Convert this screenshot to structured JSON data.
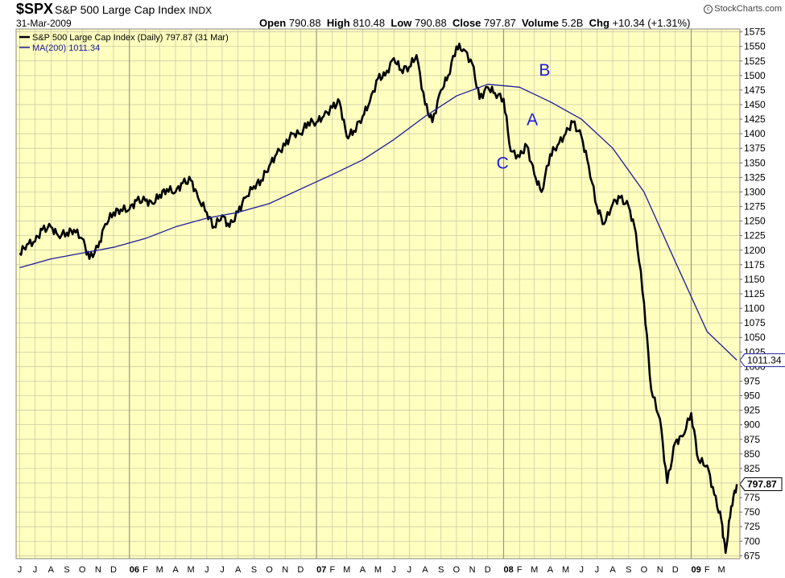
{
  "header": {
    "symbol": "$SPX",
    "name": "S&P 500 Large Cap Index",
    "exchange": "INDX",
    "date": "31-Mar-2009",
    "open_label": "Open",
    "open": "790.88",
    "high_label": "High",
    "high": "810.48",
    "low_label": "Low",
    "low": "790.88",
    "close_label": "Close",
    "close": "797.87",
    "volume_label": "Volume",
    "volume": "5.2B",
    "chg_label": "Chg",
    "chg": "+10.34 (+1.31%)",
    "brand": "StockCharts.com",
    "brand_icon": "copyright-icon"
  },
  "colors": {
    "plot_background": "#ffffc0",
    "grid": "#c4c4a0",
    "price_line": "#000000",
    "ma_line": "#1c1c99",
    "annotation": "#1a1adc"
  },
  "chart_data": {
    "type": "line",
    "title": "S&P 500 Large Cap Index",
    "xlabel": "",
    "ylabel": "",
    "ylim": [
      670,
      1580
    ],
    "y_ticks": [
      675,
      700,
      725,
      750,
      775,
      800,
      825,
      850,
      875,
      900,
      925,
      950,
      975,
      1000,
      1025,
      1050,
      1075,
      1100,
      1125,
      1150,
      1175,
      1200,
      1225,
      1250,
      1275,
      1300,
      1325,
      1350,
      1375,
      1400,
      1425,
      1450,
      1475,
      1500,
      1525,
      1550,
      1575
    ],
    "y_axis_side": "right",
    "grid": true,
    "legend_position": "top-left",
    "x_ticks": [
      "J",
      "J",
      "A",
      "S",
      "O",
      "N",
      "D",
      "06",
      "F",
      "M",
      "A",
      "M",
      "J",
      "J",
      "A",
      "S",
      "O",
      "N",
      "D",
      "07",
      "F",
      "M",
      "A",
      "M",
      "J",
      "J",
      "A",
      "S",
      "O",
      "N",
      "D",
      "08",
      "F",
      "M",
      "A",
      "M",
      "J",
      "J",
      "A",
      "S",
      "O",
      "N",
      "D",
      "09",
      "F",
      "M"
    ],
    "x_tick_is_year": [
      false,
      false,
      false,
      false,
      false,
      false,
      false,
      true,
      false,
      false,
      false,
      false,
      false,
      false,
      false,
      false,
      false,
      false,
      false,
      true,
      false,
      false,
      false,
      false,
      false,
      false,
      false,
      false,
      false,
      false,
      false,
      true,
      false,
      false,
      false,
      false,
      false,
      false,
      false,
      false,
      false,
      false,
      false,
      true,
      false,
      false
    ],
    "series": [
      {
        "name": "S&P 500 Large Cap Index (Daily) 797.87 (31 Mar)",
        "color": "#000000",
        "last_value_label": "797.87",
        "x": [
          "2005-06-01",
          "2005-06-15",
          "2005-07-01",
          "2005-07-15",
          "2005-08-01",
          "2005-08-15",
          "2005-09-01",
          "2005-09-15",
          "2005-10-01",
          "2005-10-15",
          "2005-11-01",
          "2005-11-15",
          "2005-12-01",
          "2005-12-15",
          "2006-01-01",
          "2006-01-15",
          "2006-02-01",
          "2006-02-15",
          "2006-03-01",
          "2006-03-15",
          "2006-04-01",
          "2006-04-15",
          "2006-05-01",
          "2006-05-15",
          "2006-06-01",
          "2006-06-15",
          "2006-07-01",
          "2006-07-15",
          "2006-08-01",
          "2006-08-15",
          "2006-09-01",
          "2006-09-15",
          "2006-10-01",
          "2006-10-15",
          "2006-11-01",
          "2006-11-15",
          "2006-12-01",
          "2006-12-15",
          "2007-01-01",
          "2007-01-15",
          "2007-02-01",
          "2007-02-15",
          "2007-03-01",
          "2007-03-15",
          "2007-04-01",
          "2007-04-15",
          "2007-05-01",
          "2007-05-15",
          "2007-06-01",
          "2007-06-15",
          "2007-07-01",
          "2007-07-15",
          "2007-08-01",
          "2007-08-15",
          "2007-09-01",
          "2007-09-15",
          "2007-10-01",
          "2007-10-15",
          "2007-11-01",
          "2007-11-15",
          "2007-12-01",
          "2007-12-15",
          "2008-01-01",
          "2008-01-15",
          "2008-02-01",
          "2008-02-15",
          "2008-03-01",
          "2008-03-15",
          "2008-04-01",
          "2008-04-15",
          "2008-05-01",
          "2008-05-15",
          "2008-06-01",
          "2008-06-15",
          "2008-07-01",
          "2008-07-15",
          "2008-08-01",
          "2008-08-15",
          "2008-09-01",
          "2008-09-15",
          "2008-10-01",
          "2008-10-15",
          "2008-11-01",
          "2008-11-15",
          "2008-12-01",
          "2008-12-15",
          "2009-01-01",
          "2009-01-15",
          "2009-02-01",
          "2009-02-15",
          "2009-03-01",
          "2009-03-09",
          "2009-03-20",
          "2009-03-31"
        ],
        "y": [
          1195,
          1210,
          1215,
          1235,
          1240,
          1225,
          1230,
          1235,
          1220,
          1185,
          1205,
          1245,
          1265,
          1270,
          1270,
          1285,
          1285,
          1280,
          1295,
          1305,
          1300,
          1315,
          1320,
          1290,
          1265,
          1240,
          1260,
          1240,
          1265,
          1290,
          1310,
          1320,
          1345,
          1365,
          1380,
          1400,
          1400,
          1420,
          1420,
          1430,
          1445,
          1455,
          1395,
          1405,
          1430,
          1455,
          1495,
          1500,
          1530,
          1510,
          1515,
          1535,
          1450,
          1420,
          1475,
          1500,
          1550,
          1545,
          1520,
          1460,
          1480,
          1470,
          1460,
          1370,
          1360,
          1380,
          1330,
          1300,
          1365,
          1380,
          1400,
          1420,
          1395,
          1345,
          1275,
          1245,
          1280,
          1290,
          1275,
          1230,
          1110,
          960,
          910,
          800,
          870,
          880,
          920,
          840,
          830,
          780,
          735,
          680,
          760,
          798
        ]
      },
      {
        "name": "MA(200) 1011.34",
        "color": "#1c1c99",
        "last_value_label": "1011.34",
        "x": [
          "2005-06-01",
          "2005-08-01",
          "2005-10-01",
          "2005-12-01",
          "2006-02-01",
          "2006-04-01",
          "2006-06-01",
          "2006-08-01",
          "2006-10-01",
          "2006-12-01",
          "2007-02-01",
          "2007-04-01",
          "2007-06-01",
          "2007-08-01",
          "2007-10-01",
          "2007-12-01",
          "2008-02-01",
          "2008-04-01",
          "2008-06-01",
          "2008-08-01",
          "2008-10-01",
          "2008-12-01",
          "2009-02-01",
          "2009-03-31"
        ],
        "y": [
          1170,
          1185,
          1195,
          1205,
          1220,
          1240,
          1255,
          1265,
          1280,
          1305,
          1330,
          1355,
          1390,
          1430,
          1465,
          1485,
          1480,
          1455,
          1425,
          1375,
          1300,
          1180,
          1060,
          1011
        ]
      }
    ],
    "annotations": [
      {
        "text": "A",
        "x": "2008-02-15",
        "y": 1415
      },
      {
        "text": "B",
        "x": "2008-03-10",
        "y": 1500
      },
      {
        "text": "C",
        "x": "2007-12-18",
        "y": 1340
      }
    ]
  }
}
